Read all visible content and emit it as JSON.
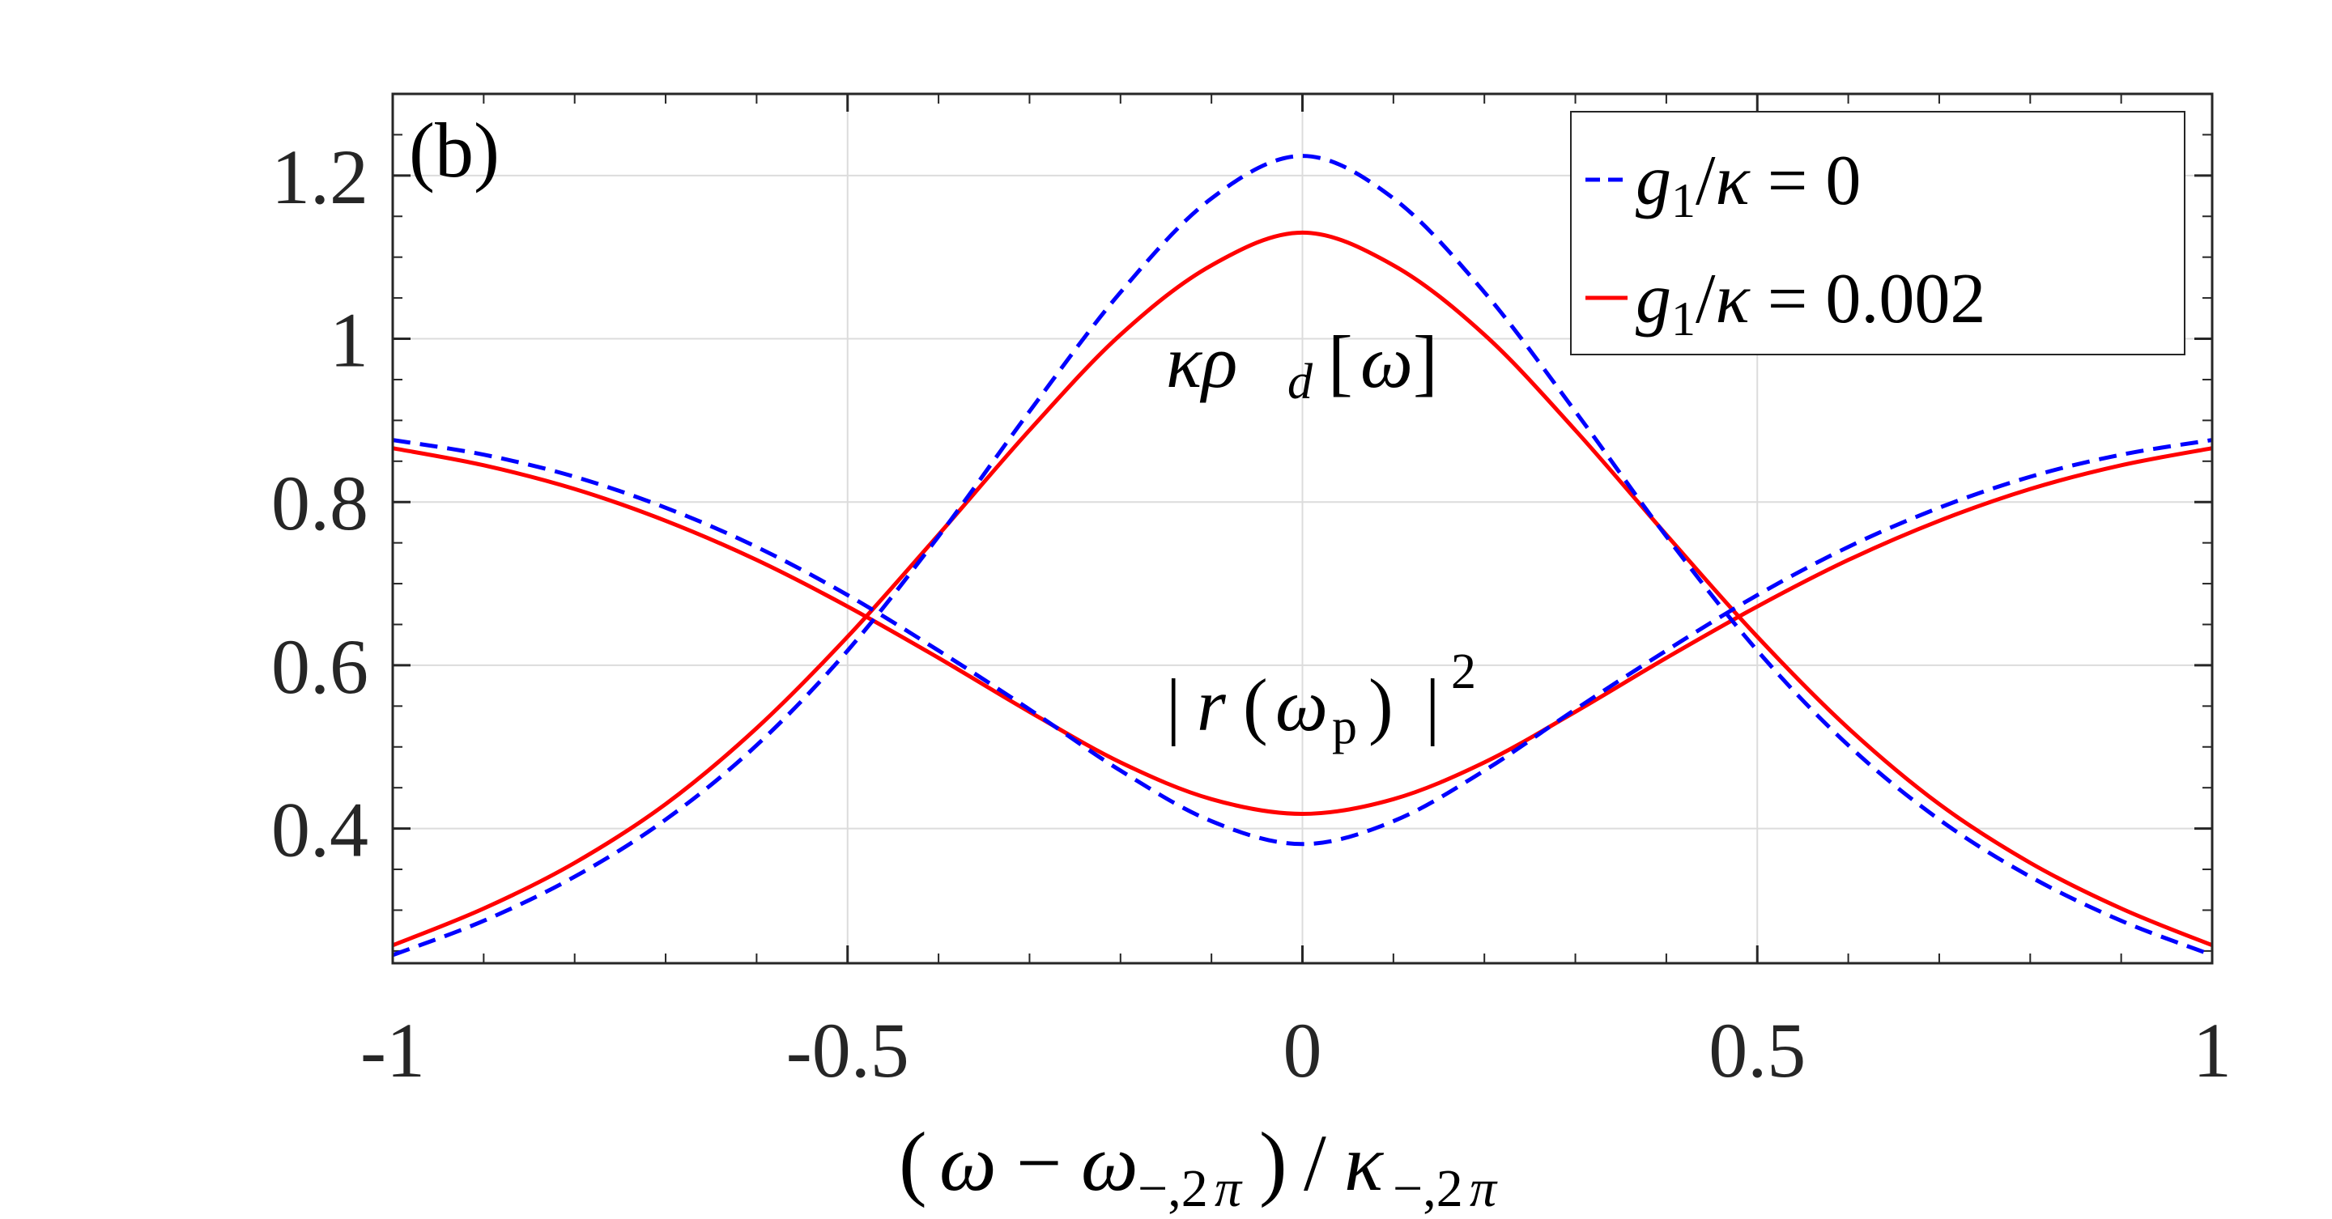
{
  "chart_data": {
    "type": "line",
    "panel_label": "(b)",
    "xlabel": "(ω − ω−,2π) / κ−,2π",
    "ylabel": "",
    "xlim": [
      -1,
      1
    ],
    "ylim": [
      0.235,
      1.3
    ],
    "x_ticks": [
      -1,
      -0.5,
      0,
      0.5,
      1
    ],
    "x_tick_labels": [
      "-1",
      "-0.5",
      "0",
      "0.5",
      "1"
    ],
    "y_ticks": [
      0.4,
      0.6,
      0.8,
      1,
      1.2
    ],
    "y_tick_labels": [
      "0.4",
      "0.6",
      "0.8",
      "1",
      "1.2"
    ],
    "grid": true,
    "legend_position": "top-right",
    "series": [
      {
        "name": "g1/κ = 0",
        "color": "#0000ff",
        "style": "dashed",
        "curves": [
          {
            "label": "κρd[ω]",
            "x": [
              -1,
              -0.9,
              -0.8,
              -0.7,
              -0.6,
              -0.5,
              -0.4,
              -0.3,
              -0.2,
              -0.1,
              0,
              0.1,
              0.2,
              0.3,
              0.4,
              0.5,
              0.6,
              0.7,
              0.8,
              0.9,
              1
            ],
            "y": [
              0.245,
              0.287,
              0.341,
              0.411,
              0.502,
              0.618,
              0.758,
              0.911,
              1.057,
              1.172,
              1.224,
              1.172,
              1.057,
              0.911,
              0.758,
              0.618,
              0.502,
              0.411,
              0.341,
              0.287,
              0.245
            ]
          },
          {
            "label": "|r(ωp)|²",
            "x": [
              -1,
              -0.9,
              -0.8,
              -0.7,
              -0.6,
              -0.5,
              -0.4,
              -0.3,
              -0.2,
              -0.1,
              0,
              0.1,
              0.2,
              0.3,
              0.4,
              0.5,
              0.6,
              0.7,
              0.8,
              0.9,
              1
            ],
            "y": [
              0.876,
              0.858,
              0.831,
              0.793,
              0.745,
              0.686,
              0.618,
              0.546,
              0.471,
              0.409,
              0.381,
              0.409,
              0.471,
              0.546,
              0.618,
              0.686,
              0.745,
              0.793,
              0.831,
              0.858,
              0.876
            ]
          }
        ]
      },
      {
        "name": "g1/κ = 0.002",
        "color": "#ff0000",
        "style": "solid",
        "curves": [
          {
            "label": "κρd[ω]",
            "x": [
              -1,
              -0.9,
              -0.8,
              -0.7,
              -0.6,
              -0.5,
              -0.4,
              -0.3,
              -0.2,
              -0.1,
              0,
              0.1,
              0.2,
              0.3,
              0.4,
              0.5,
              0.6,
              0.7,
              0.8,
              0.9,
              1
            ],
            "y": [
              0.257,
              0.302,
              0.358,
              0.43,
              0.523,
              0.635,
              0.76,
              0.888,
              1.005,
              1.09,
              1.13,
              1.09,
              1.005,
              0.888,
              0.76,
              0.635,
              0.523,
              0.43,
              0.358,
              0.302,
              0.257
            ]
          },
          {
            "label": "|r(ωp)|²",
            "x": [
              -1,
              -0.9,
              -0.8,
              -0.7,
              -0.6,
              -0.5,
              -0.4,
              -0.3,
              -0.2,
              -0.1,
              0,
              0.1,
              0.2,
              0.3,
              0.4,
              0.5,
              0.6,
              0.7,
              0.8,
              0.9,
              1
            ],
            "y": [
              0.866,
              0.845,
              0.816,
              0.777,
              0.729,
              0.672,
              0.609,
              0.543,
              0.481,
              0.436,
              0.418,
              0.436,
              0.481,
              0.543,
              0.609,
              0.672,
              0.729,
              0.777,
              0.816,
              0.845,
              0.866
            ]
          }
        ]
      }
    ],
    "annotations": [
      {
        "text": "κρd[ω]",
        "x": 0.07,
        "y": 1.0
      },
      {
        "text": "|r(ωp)|²",
        "x": 0.07,
        "y": 0.62
      }
    ]
  }
}
